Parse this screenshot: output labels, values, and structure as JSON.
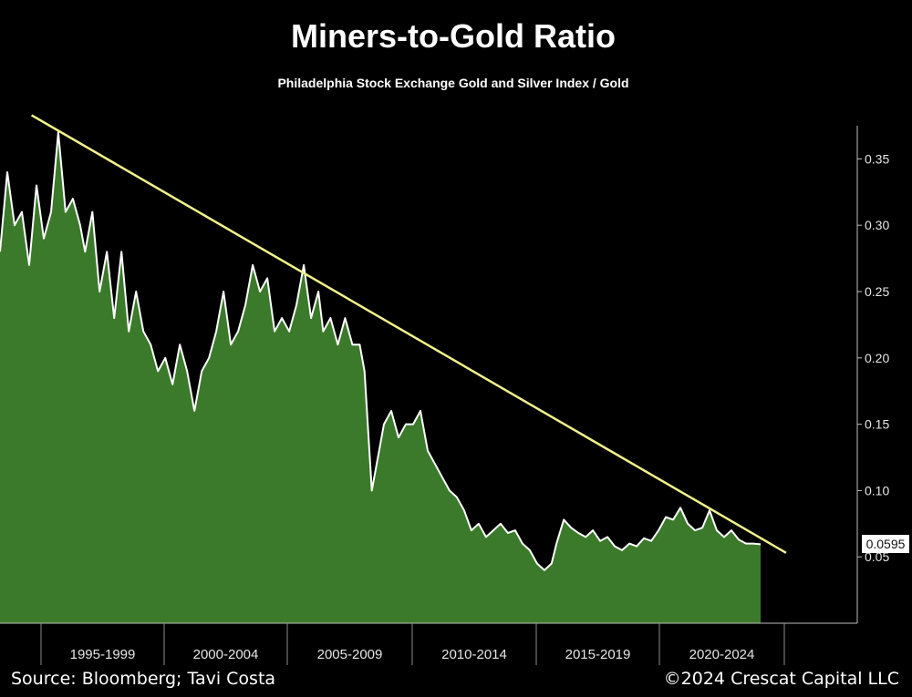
{
  "chart_data": {
    "type": "area",
    "title": "Miners-to-Gold Ratio",
    "subtitle": "Philadelphia Stock Exchange Gold and Silver Index / Gold",
    "x_tick_labels": [
      "1995-1999",
      "2000-2004",
      "2005-2009",
      "2010-2014",
      "2015-2019",
      "2020-2024"
    ],
    "xlim": [
      1993.0,
      2025.6
    ],
    "ylim": [
      0.0,
      0.375
    ],
    "y_ticks": [
      0.05,
      0.1,
      0.15,
      0.2,
      0.25,
      0.3,
      0.35
    ],
    "y_tick_labels": [
      "0.05",
      "0.10",
      "0.15",
      "0.20",
      "0.25",
      "0.30",
      "0.35"
    ],
    "y_axis_side": "right",
    "grid": false,
    "series": [
      {
        "fill_color": "#3b7a2b",
        "line_color": "#ffffff",
        "x": [
          1993.0,
          1993.3,
          1993.6,
          1993.9,
          1994.2,
          1994.5,
          1994.8,
          1995.1,
          1995.4,
          1995.7,
          1996.0,
          1996.3,
          1996.5,
          1996.8,
          1997.1,
          1997.4,
          1997.7,
          1998.0,
          1998.3,
          1998.6,
          1998.9,
          1999.2,
          1999.5,
          1999.8,
          2000.1,
          2000.4,
          2000.7,
          2001.0,
          2001.3,
          2001.6,
          2001.9,
          2002.2,
          2002.5,
          2002.8,
          2003.1,
          2003.4,
          2003.7,
          2004.0,
          2004.3,
          2004.6,
          2004.9,
          2005.2,
          2005.5,
          2005.8,
          2006.1,
          2006.3,
          2006.6,
          2006.9,
          2007.2,
          2007.5,
          2007.8,
          2008.0,
          2008.3,
          2008.6,
          2008.8,
          2009.1,
          2009.4,
          2009.7,
          2010.0,
          2010.3,
          2010.6,
          2010.9,
          2011.2,
          2011.5,
          2011.8,
          2012.1,
          2012.4,
          2012.7,
          2013.0,
          2013.3,
          2013.6,
          2013.9,
          2014.2,
          2014.5,
          2014.8,
          2015.1,
          2015.4,
          2015.7,
          2015.9,
          2016.2,
          2016.5,
          2016.8,
          2017.1,
          2017.4,
          2017.7,
          2018.0,
          2018.3,
          2018.6,
          2018.9,
          2019.2,
          2019.5,
          2019.8,
          2020.1,
          2020.4,
          2020.7,
          2021.0,
          2021.3,
          2021.6,
          2021.9,
          2022.2,
          2022.5,
          2022.8,
          2023.1,
          2023.4,
          2023.7,
          2024.0,
          2024.3
        ],
        "values": [
          0.28,
          0.34,
          0.3,
          0.31,
          0.27,
          0.33,
          0.29,
          0.31,
          0.37,
          0.31,
          0.32,
          0.3,
          0.28,
          0.31,
          0.25,
          0.28,
          0.23,
          0.28,
          0.22,
          0.25,
          0.22,
          0.21,
          0.19,
          0.2,
          0.18,
          0.21,
          0.19,
          0.16,
          0.19,
          0.2,
          0.22,
          0.25,
          0.21,
          0.22,
          0.24,
          0.27,
          0.25,
          0.26,
          0.22,
          0.23,
          0.22,
          0.24,
          0.27,
          0.23,
          0.25,
          0.22,
          0.23,
          0.21,
          0.23,
          0.21,
          0.21,
          0.19,
          0.1,
          0.13,
          0.15,
          0.16,
          0.14,
          0.15,
          0.15,
          0.16,
          0.13,
          0.12,
          0.11,
          0.1,
          0.095,
          0.085,
          0.07,
          0.075,
          0.065,
          0.07,
          0.075,
          0.068,
          0.07,
          0.06,
          0.055,
          0.045,
          0.04,
          0.045,
          0.06,
          0.078,
          0.072,
          0.068,
          0.065,
          0.07,
          0.062,
          0.065,
          0.058,
          0.055,
          0.06,
          0.058,
          0.064,
          0.062,
          0.07,
          0.08,
          0.078,
          0.087,
          0.075,
          0.07,
          0.072,
          0.085,
          0.07,
          0.065,
          0.07,
          0.063,
          0.06,
          0.06,
          0.0595
        ]
      }
    ],
    "trendline": {
      "color": "#f2f28a",
      "x": [
        1994.3,
        2025.6
      ],
      "y": [
        0.383,
        0.053
      ]
    },
    "last_value_label": "0.0595",
    "source": "Source: Bloomberg; Tavi Costa",
    "copyright": "©2024 Crescat Capital LLC"
  }
}
